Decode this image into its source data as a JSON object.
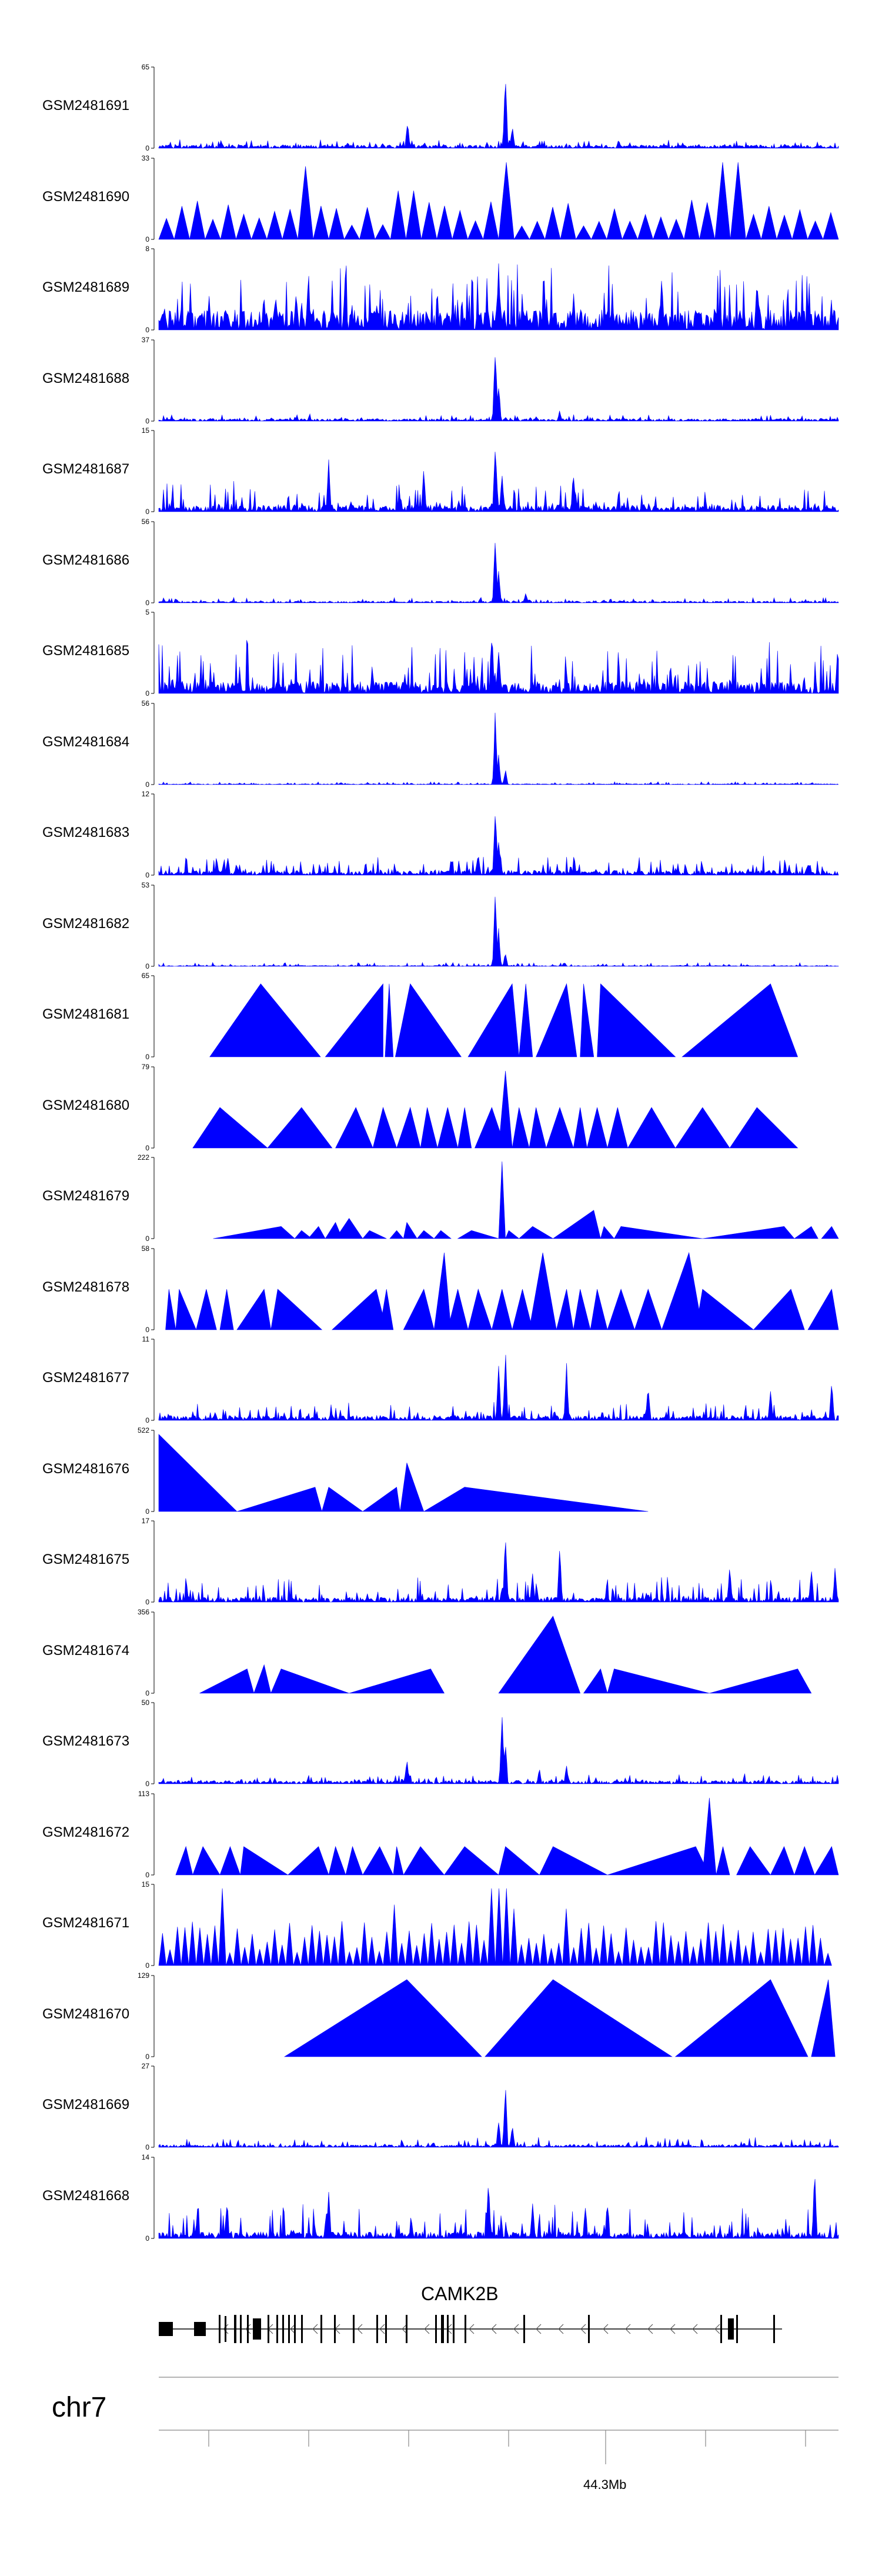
{
  "chart_data": {
    "type": "area",
    "fill_color": "#0000ff",
    "axis_color": "#000000",
    "series": [
      {
        "name": "GSM2481691",
        "ymax": 65,
        "ymin": 0,
        "style": "noisy",
        "base": 0.04,
        "noise": 0.08,
        "peaks": [
          [
            0.366,
            0.35
          ],
          [
            0.51,
            1.0
          ],
          [
            0.52,
            0.3
          ]
        ]
      },
      {
        "name": "GSM2481690",
        "ymax": 33,
        "ymin": 0,
        "style": "spikes",
        "count": 44,
        "min": 0.15,
        "max": 0.5,
        "peaks": [
          [
            0.21,
            0.9
          ],
          [
            0.51,
            0.95
          ],
          [
            0.84,
            0.95
          ],
          [
            0.365,
            0.6
          ]
        ]
      },
      {
        "name": "GSM2481689",
        "ymax": 8,
        "ymin": 0,
        "style": "noisy",
        "base": 0.25,
        "noise": 0.6,
        "peaks": [
          [
            0.5,
            0.95
          ],
          [
            0.22,
            0.7
          ],
          [
            0.74,
            0.7
          ],
          [
            0.88,
            0.6
          ]
        ]
      },
      {
        "name": "GSM2481688",
        "ymax": 37,
        "ymin": 0,
        "style": "noisy",
        "base": 0.03,
        "noise": 0.06,
        "peaks": [
          [
            0.495,
            1.0
          ],
          [
            0.5,
            0.5
          ],
          [
            0.59,
            0.14
          ]
        ]
      },
      {
        "name": "GSM2481687",
        "ymax": 15,
        "ymin": 0,
        "style": "noisy",
        "base": 0.08,
        "noise": 0.3,
        "peaks": [
          [
            0.495,
            0.95
          ],
          [
            0.505,
            0.6
          ],
          [
            0.25,
            0.7
          ],
          [
            0.39,
            0.55
          ],
          [
            0.61,
            0.55
          ]
        ]
      },
      {
        "name": "GSM2481686",
        "ymax": 56,
        "ymin": 0,
        "style": "noisy",
        "base": 0.02,
        "noise": 0.05,
        "peaks": [
          [
            0.495,
            0.95
          ],
          [
            0.5,
            0.45
          ],
          [
            0.54,
            0.14
          ],
          [
            0.54,
            0.12
          ]
        ]
      },
      {
        "name": "GSM2481685",
        "ymax": 5,
        "ymin": 0,
        "style": "noisy",
        "base": 0.15,
        "noise": 0.55,
        "peaks": [
          [
            0.49,
            0.9
          ],
          [
            0.5,
            0.6
          ]
        ]
      },
      {
        "name": "GSM2481684",
        "ymax": 56,
        "ymin": 0,
        "style": "noisy",
        "base": 0.01,
        "noise": 0.03,
        "peaks": [
          [
            0.495,
            0.95
          ],
          [
            0.5,
            0.4
          ],
          [
            0.51,
            0.2
          ]
        ]
      },
      {
        "name": "GSM2481683",
        "ymax": 12,
        "ymin": 0,
        "style": "noisy",
        "base": 0.06,
        "noise": 0.18,
        "peaks": [
          [
            0.495,
            0.95
          ],
          [
            0.5,
            0.5
          ],
          [
            0.47,
            0.3
          ]
        ]
      },
      {
        "name": "GSM2481682",
        "ymax": 53,
        "ymin": 0,
        "style": "noisy",
        "base": 0.01,
        "noise": 0.04,
        "peaks": [
          [
            0.495,
            0.95
          ],
          [
            0.5,
            0.5
          ],
          [
            0.51,
            0.2
          ]
        ]
      },
      {
        "name": "GSM2481681",
        "ymax": 65,
        "ymin": 0,
        "style": "triangles",
        "tris": [
          [
            0.075,
            0.238,
            0.15,
            0.9
          ],
          [
            0.245,
            0.33,
            0.33,
            0.9
          ],
          [
            0.333,
            0.345,
            0.339,
            0.9
          ],
          [
            0.348,
            0.445,
            0.37,
            0.9
          ],
          [
            0.455,
            0.53,
            0.52,
            0.9
          ],
          [
            0.53,
            0.55,
            0.54,
            0.9
          ],
          [
            0.555,
            0.615,
            0.6,
            0.9
          ],
          [
            0.62,
            0.64,
            0.625,
            0.9
          ],
          [
            0.645,
            0.76,
            0.65,
            0.9
          ],
          [
            0.77,
            0.94,
            0.9,
            0.9
          ]
        ]
      },
      {
        "name": "GSM2481680",
        "ymax": 79,
        "ymin": 0,
        "style": "triangles",
        "tris": [
          [
            0.05,
            0.16,
            0.09,
            0.5
          ],
          [
            0.16,
            0.255,
            0.21,
            0.5
          ],
          [
            0.26,
            0.315,
            0.29,
            0.5
          ],
          [
            0.315,
            0.35,
            0.33,
            0.5
          ],
          [
            0.35,
            0.385,
            0.37,
            0.5
          ],
          [
            0.385,
            0.41,
            0.395,
            0.5
          ],
          [
            0.41,
            0.44,
            0.425,
            0.5
          ],
          [
            0.44,
            0.46,
            0.45,
            0.5
          ],
          [
            0.465,
            0.51,
            0.49,
            0.5
          ],
          [
            0.5,
            0.52,
            0.51,
            0.95
          ],
          [
            0.52,
            0.545,
            0.53,
            0.5
          ],
          [
            0.545,
            0.57,
            0.555,
            0.5
          ],
          [
            0.57,
            0.61,
            0.59,
            0.5
          ],
          [
            0.61,
            0.63,
            0.62,
            0.5
          ],
          [
            0.63,
            0.66,
            0.645,
            0.5
          ],
          [
            0.66,
            0.69,
            0.675,
            0.5
          ],
          [
            0.69,
            0.76,
            0.725,
            0.5
          ],
          [
            0.76,
            0.84,
            0.8,
            0.5
          ],
          [
            0.84,
            0.94,
            0.88,
            0.5
          ]
        ]
      },
      {
        "name": "GSM2481679",
        "ymax": 222,
        "ymin": 0,
        "style": "triangles",
        "tris": [
          [
            0.08,
            0.2,
            0.18,
            0.15
          ],
          [
            0.2,
            0.225,
            0.21,
            0.1
          ],
          [
            0.22,
            0.245,
            0.235,
            0.15
          ],
          [
            0.245,
            0.27,
            0.26,
            0.2
          ],
          [
            0.26,
            0.3,
            0.28,
            0.25
          ],
          [
            0.3,
            0.335,
            0.31,
            0.1
          ],
          [
            0.34,
            0.36,
            0.35,
            0.1
          ],
          [
            0.36,
            0.38,
            0.365,
            0.2
          ],
          [
            0.38,
            0.405,
            0.39,
            0.1
          ],
          [
            0.405,
            0.43,
            0.415,
            0.1
          ],
          [
            0.44,
            0.5,
            0.46,
            0.1
          ],
          [
            0.5,
            0.51,
            0.505,
            0.95
          ],
          [
            0.51,
            0.53,
            0.515,
            0.1
          ],
          [
            0.53,
            0.58,
            0.55,
            0.15
          ],
          [
            0.58,
            0.65,
            0.64,
            0.35
          ],
          [
            0.65,
            0.67,
            0.655,
            0.15
          ],
          [
            0.67,
            0.8,
            0.68,
            0.15
          ],
          [
            0.8,
            0.935,
            0.92,
            0.15
          ],
          [
            0.935,
            0.97,
            0.96,
            0.15
          ],
          [
            0.975,
            1.0,
            0.99,
            0.15
          ]
        ]
      },
      {
        "name": "GSM2481678",
        "ymax": 58,
        "ymin": 0,
        "style": "triangles",
        "tris": [
          [
            0.01,
            0.025,
            0.015,
            0.5
          ],
          [
            0.025,
            0.055,
            0.03,
            0.5
          ],
          [
            0.055,
            0.085,
            0.07,
            0.5
          ],
          [
            0.09,
            0.11,
            0.1,
            0.5
          ],
          [
            0.115,
            0.165,
            0.155,
            0.5
          ],
          [
            0.165,
            0.24,
            0.175,
            0.5
          ],
          [
            0.255,
            0.335,
            0.32,
            0.5
          ],
          [
            0.325,
            0.345,
            0.335,
            0.5
          ],
          [
            0.36,
            0.405,
            0.39,
            0.5
          ],
          [
            0.405,
            0.43,
            0.42,
            0.95
          ],
          [
            0.425,
            0.455,
            0.44,
            0.5
          ],
          [
            0.455,
            0.49,
            0.47,
            0.5
          ],
          [
            0.49,
            0.52,
            0.505,
            0.5
          ],
          [
            0.52,
            0.55,
            0.535,
            0.5
          ],
          [
            0.545,
            0.585,
            0.565,
            0.95
          ],
          [
            0.585,
            0.61,
            0.6,
            0.5
          ],
          [
            0.61,
            0.635,
            0.62,
            0.5
          ],
          [
            0.635,
            0.66,
            0.645,
            0.5
          ],
          [
            0.66,
            0.7,
            0.68,
            0.5
          ],
          [
            0.7,
            0.74,
            0.72,
            0.5
          ],
          [
            0.74,
            0.8,
            0.78,
            0.95
          ],
          [
            0.79,
            0.875,
            0.8,
            0.5
          ],
          [
            0.875,
            0.95,
            0.93,
            0.5
          ],
          [
            0.955,
            1.0,
            0.99,
            0.5
          ]
        ]
      },
      {
        "name": "GSM2481677",
        "ymax": 11,
        "ymin": 0,
        "style": "noisy",
        "base": 0.06,
        "noise": 0.18,
        "peaks": [
          [
            0.51,
            0.95
          ],
          [
            0.5,
            0.8
          ],
          [
            0.6,
            0.75
          ],
          [
            0.72,
            0.45
          ],
          [
            0.9,
            0.4
          ],
          [
            0.99,
            0.55
          ]
        ]
      },
      {
        "name": "GSM2481676",
        "ymax": 522,
        "ymin": 0,
        "style": "triangles",
        "tris": [
          [
            0.0,
            0.115,
            0.0,
            0.95
          ],
          [
            0.115,
            0.24,
            0.23,
            0.3
          ],
          [
            0.24,
            0.3,
            0.25,
            0.3
          ],
          [
            0.3,
            0.355,
            0.35,
            0.3
          ],
          [
            0.355,
            0.39,
            0.365,
            0.6
          ],
          [
            0.39,
            0.72,
            0.45,
            0.3
          ]
        ]
      },
      {
        "name": "GSM2481675",
        "ymax": 17,
        "ymin": 0,
        "style": "noisy",
        "base": 0.06,
        "noise": 0.28,
        "peaks": [
          [
            0.51,
            0.95
          ],
          [
            0.59,
            0.7
          ],
          [
            0.84,
            0.5
          ],
          [
            0.55,
            0.4
          ],
          [
            0.96,
            0.45
          ],
          [
            0.995,
            0.45
          ]
        ]
      },
      {
        "name": "GSM2481674",
        "ymax": 356,
        "ymin": 0,
        "style": "triangles",
        "tris": [
          [
            0.06,
            0.14,
            0.13,
            0.3
          ],
          [
            0.14,
            0.165,
            0.155,
            0.35
          ],
          [
            0.165,
            0.28,
            0.18,
            0.3
          ],
          [
            0.28,
            0.42,
            0.4,
            0.3
          ],
          [
            0.5,
            0.62,
            0.58,
            0.95
          ],
          [
            0.625,
            0.66,
            0.65,
            0.3
          ],
          [
            0.66,
            0.81,
            0.67,
            0.3
          ],
          [
            0.81,
            0.96,
            0.94,
            0.3
          ]
        ]
      },
      {
        "name": "GSM2481673",
        "ymax": 50,
        "ymin": 0,
        "style": "noisy",
        "base": 0.04,
        "noise": 0.1,
        "peaks": [
          [
            0.505,
            0.95
          ],
          [
            0.51,
            0.6
          ],
          [
            0.365,
            0.35
          ],
          [
            0.6,
            0.25
          ],
          [
            0.56,
            0.2
          ]
        ]
      },
      {
        "name": "GSM2481672",
        "ymax": 113,
        "ymin": 0,
        "style": "triangles",
        "tris": [
          [
            0.025,
            0.05,
            0.04,
            0.35
          ],
          [
            0.05,
            0.09,
            0.065,
            0.35
          ],
          [
            0.09,
            0.12,
            0.105,
            0.35
          ],
          [
            0.12,
            0.19,
            0.125,
            0.35
          ],
          [
            0.19,
            0.25,
            0.235,
            0.35
          ],
          [
            0.25,
            0.275,
            0.26,
            0.35
          ],
          [
            0.275,
            0.3,
            0.285,
            0.35
          ],
          [
            0.3,
            0.345,
            0.325,
            0.35
          ],
          [
            0.345,
            0.36,
            0.35,
            0.35
          ],
          [
            0.36,
            0.42,
            0.385,
            0.35
          ],
          [
            0.42,
            0.5,
            0.45,
            0.35
          ],
          [
            0.5,
            0.56,
            0.51,
            0.35
          ],
          [
            0.56,
            0.66,
            0.58,
            0.35
          ],
          [
            0.66,
            0.81,
            0.79,
            0.35
          ],
          [
            0.8,
            0.82,
            0.81,
            0.95
          ],
          [
            0.82,
            0.84,
            0.83,
            0.35
          ],
          [
            0.85,
            0.9,
            0.87,
            0.35
          ],
          [
            0.9,
            0.935,
            0.92,
            0.35
          ],
          [
            0.935,
            0.965,
            0.95,
            0.35
          ],
          [
            0.965,
            1.0,
            0.99,
            0.35
          ]
        ]
      },
      {
        "name": "GSM2481671",
        "ymax": 15,
        "ymin": 0,
        "style": "spikes",
        "count": 90,
        "min": 0.15,
        "max": 0.55,
        "peaks": [
          [
            0.09,
            0.95
          ],
          [
            0.35,
            0.75
          ],
          [
            0.495,
            0.95
          ],
          [
            0.505,
            0.95
          ],
          [
            0.525,
            0.7
          ],
          [
            0.6,
            0.7
          ]
        ],
        "limit": 0.99
      },
      {
        "name": "GSM2481670",
        "ymax": 129,
        "ymin": 0,
        "style": "triangles",
        "tris": [
          [
            0.185,
            0.475,
            0.365,
            0.95
          ],
          [
            0.48,
            0.755,
            0.58,
            0.95
          ],
          [
            0.76,
            0.955,
            0.9,
            0.95
          ],
          [
            0.96,
            0.995,
            0.985,
            0.95
          ]
        ]
      },
      {
        "name": "GSM2481669",
        "ymax": 27,
        "ymin": 0,
        "style": "noisy",
        "base": 0.03,
        "noise": 0.1,
        "peaks": [
          [
            0.51,
            0.95
          ],
          [
            0.5,
            0.35
          ],
          [
            0.52,
            0.3
          ]
        ]
      },
      {
        "name": "GSM2481668",
        "ymax": 14,
        "ymin": 0,
        "style": "noisy",
        "base": 0.08,
        "noise": 0.35,
        "peaks": [
          [
            0.485,
            0.8
          ],
          [
            0.965,
            0.95
          ],
          [
            0.25,
            0.6
          ],
          [
            0.55,
            0.5
          ],
          [
            0.66,
            0.5
          ]
        ]
      }
    ]
  },
  "gene": {
    "name": "CAMK2B",
    "strand": "-"
  },
  "axis": {
    "chromosome": "chr7",
    "label": "44.3Mb"
  }
}
